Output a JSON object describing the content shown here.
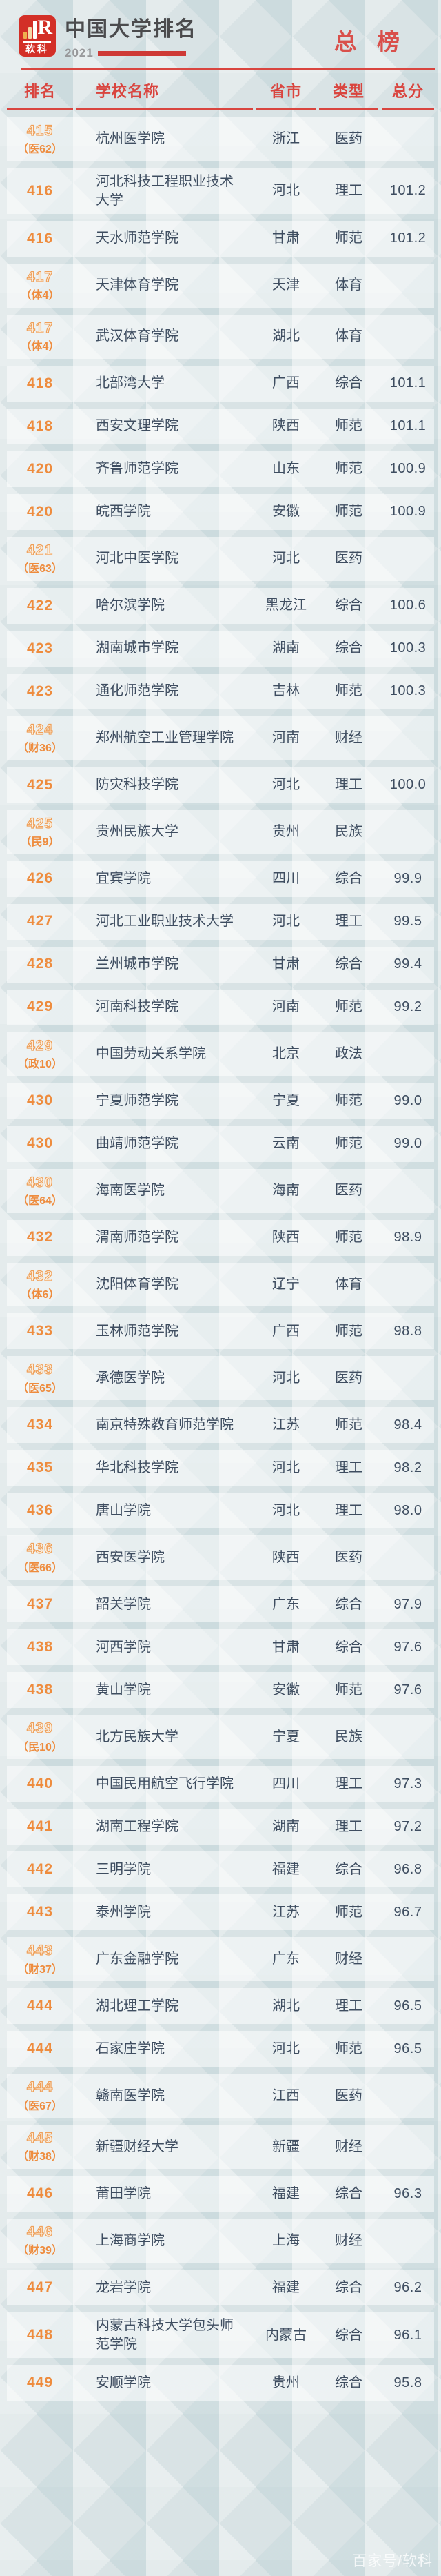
{
  "header": {
    "logo_label": "软科",
    "logo_glyph": "R",
    "title": "中国大学排名",
    "year": "2021",
    "badge": "总 榜"
  },
  "chart_data": {
    "type": "table",
    "title": "中国大学排名 2021 总榜",
    "columns": [
      "排名",
      "学校名称",
      "省市",
      "类型",
      "总分"
    ],
    "rows": [
      {
        "rank": "415",
        "sub": "（医62）",
        "name": "杭州医学院",
        "province": "浙江",
        "type": "医药",
        "score": ""
      },
      {
        "rank": "416",
        "sub": "",
        "name": "河北科技工程职业技术大学",
        "province": "河北",
        "type": "理工",
        "score": "101.2"
      },
      {
        "rank": "416",
        "sub": "",
        "name": "天水师范学院",
        "province": "甘肃",
        "type": "师范",
        "score": "101.2"
      },
      {
        "rank": "417",
        "sub": "（体4）",
        "name": "天津体育学院",
        "province": "天津",
        "type": "体育",
        "score": ""
      },
      {
        "rank": "417",
        "sub": "（体4）",
        "name": "武汉体育学院",
        "province": "湖北",
        "type": "体育",
        "score": ""
      },
      {
        "rank": "418",
        "sub": "",
        "name": "北部湾大学",
        "province": "广西",
        "type": "综合",
        "score": "101.1"
      },
      {
        "rank": "418",
        "sub": "",
        "name": "西安文理学院",
        "province": "陕西",
        "type": "师范",
        "score": "101.1"
      },
      {
        "rank": "420",
        "sub": "",
        "name": "齐鲁师范学院",
        "province": "山东",
        "type": "师范",
        "score": "100.9"
      },
      {
        "rank": "420",
        "sub": "",
        "name": "皖西学院",
        "province": "安徽",
        "type": "师范",
        "score": "100.9"
      },
      {
        "rank": "421",
        "sub": "（医63）",
        "name": "河北中医学院",
        "province": "河北",
        "type": "医药",
        "score": ""
      },
      {
        "rank": "422",
        "sub": "",
        "name": "哈尔滨学院",
        "province": "黑龙江",
        "type": "综合",
        "score": "100.6"
      },
      {
        "rank": "423",
        "sub": "",
        "name": "湖南城市学院",
        "province": "湖南",
        "type": "综合",
        "score": "100.3"
      },
      {
        "rank": "423",
        "sub": "",
        "name": "通化师范学院",
        "province": "吉林",
        "type": "师范",
        "score": "100.3"
      },
      {
        "rank": "424",
        "sub": "（财36）",
        "name": "郑州航空工业管理学院",
        "province": "河南",
        "type": "财经",
        "score": ""
      },
      {
        "rank": "425",
        "sub": "",
        "name": "防灾科技学院",
        "province": "河北",
        "type": "理工",
        "score": "100.0"
      },
      {
        "rank": "425",
        "sub": "（民9）",
        "name": "贵州民族大学",
        "province": "贵州",
        "type": "民族",
        "score": ""
      },
      {
        "rank": "426",
        "sub": "",
        "name": "宜宾学院",
        "province": "四川",
        "type": "综合",
        "score": "99.9"
      },
      {
        "rank": "427",
        "sub": "",
        "name": "河北工业职业技术大学",
        "province": "河北",
        "type": "理工",
        "score": "99.5"
      },
      {
        "rank": "428",
        "sub": "",
        "name": "兰州城市学院",
        "province": "甘肃",
        "type": "综合",
        "score": "99.4"
      },
      {
        "rank": "429",
        "sub": "",
        "name": "河南科技学院",
        "province": "河南",
        "type": "师范",
        "score": "99.2"
      },
      {
        "rank": "429",
        "sub": "（政10）",
        "name": "中国劳动关系学院",
        "province": "北京",
        "type": "政法",
        "score": ""
      },
      {
        "rank": "430",
        "sub": "",
        "name": "宁夏师范学院",
        "province": "宁夏",
        "type": "师范",
        "score": "99.0"
      },
      {
        "rank": "430",
        "sub": "",
        "name": "曲靖师范学院",
        "province": "云南",
        "type": "师范",
        "score": "99.0"
      },
      {
        "rank": "430",
        "sub": "（医64）",
        "name": "海南医学院",
        "province": "海南",
        "type": "医药",
        "score": ""
      },
      {
        "rank": "432",
        "sub": "",
        "name": "渭南师范学院",
        "province": "陕西",
        "type": "师范",
        "score": "98.9"
      },
      {
        "rank": "432",
        "sub": "（体6）",
        "name": "沈阳体育学院",
        "province": "辽宁",
        "type": "体育",
        "score": ""
      },
      {
        "rank": "433",
        "sub": "",
        "name": "玉林师范学院",
        "province": "广西",
        "type": "师范",
        "score": "98.8"
      },
      {
        "rank": "433",
        "sub": "（医65）",
        "name": "承德医学院",
        "province": "河北",
        "type": "医药",
        "score": ""
      },
      {
        "rank": "434",
        "sub": "",
        "name": "南京特殊教育师范学院",
        "province": "江苏",
        "type": "师范",
        "score": "98.4"
      },
      {
        "rank": "435",
        "sub": "",
        "name": "华北科技学院",
        "province": "河北",
        "type": "理工",
        "score": "98.2"
      },
      {
        "rank": "436",
        "sub": "",
        "name": "唐山学院",
        "province": "河北",
        "type": "理工",
        "score": "98.0"
      },
      {
        "rank": "436",
        "sub": "（医66）",
        "name": "西安医学院",
        "province": "陕西",
        "type": "医药",
        "score": ""
      },
      {
        "rank": "437",
        "sub": "",
        "name": "韶关学院",
        "province": "广东",
        "type": "综合",
        "score": "97.9"
      },
      {
        "rank": "438",
        "sub": "",
        "name": "河西学院",
        "province": "甘肃",
        "type": "综合",
        "score": "97.6"
      },
      {
        "rank": "438",
        "sub": "",
        "name": "黄山学院",
        "province": "安徽",
        "type": "师范",
        "score": "97.6"
      },
      {
        "rank": "439",
        "sub": "（民10）",
        "name": "北方民族大学",
        "province": "宁夏",
        "type": "民族",
        "score": ""
      },
      {
        "rank": "440",
        "sub": "",
        "name": "中国民用航空飞行学院",
        "province": "四川",
        "type": "理工",
        "score": "97.3"
      },
      {
        "rank": "441",
        "sub": "",
        "name": "湖南工程学院",
        "province": "湖南",
        "type": "理工",
        "score": "97.2"
      },
      {
        "rank": "442",
        "sub": "",
        "name": "三明学院",
        "province": "福建",
        "type": "综合",
        "score": "96.8"
      },
      {
        "rank": "443",
        "sub": "",
        "name": "泰州学院",
        "province": "江苏",
        "type": "师范",
        "score": "96.7"
      },
      {
        "rank": "443",
        "sub": "（财37）",
        "name": "广东金融学院",
        "province": "广东",
        "type": "财经",
        "score": ""
      },
      {
        "rank": "444",
        "sub": "",
        "name": "湖北理工学院",
        "province": "湖北",
        "type": "理工",
        "score": "96.5"
      },
      {
        "rank": "444",
        "sub": "",
        "name": "石家庄学院",
        "province": "河北",
        "type": "师范",
        "score": "96.5"
      },
      {
        "rank": "444",
        "sub": "（医67）",
        "name": "赣南医学院",
        "province": "江西",
        "type": "医药",
        "score": ""
      },
      {
        "rank": "445",
        "sub": "（财38）",
        "name": "新疆财经大学",
        "province": "新疆",
        "type": "财经",
        "score": ""
      },
      {
        "rank": "446",
        "sub": "",
        "name": "莆田学院",
        "province": "福建",
        "type": "综合",
        "score": "96.3"
      },
      {
        "rank": "446",
        "sub": "（财39）",
        "name": "上海商学院",
        "province": "上海",
        "type": "财经",
        "score": ""
      },
      {
        "rank": "447",
        "sub": "",
        "name": "龙岩学院",
        "province": "福建",
        "type": "综合",
        "score": "96.2"
      },
      {
        "rank": "448",
        "sub": "",
        "name": "内蒙古科技大学包头师范学院",
        "province": "内蒙古",
        "type": "综合",
        "score": "96.1"
      },
      {
        "rank": "449",
        "sub": "",
        "name": "安顺学院",
        "province": "贵州",
        "type": "综合",
        "score": "95.8"
      }
    ]
  },
  "watermark": "百家号/软科",
  "colors": {
    "accent_red": "#d9453f",
    "badge_red": "#d9504b",
    "rank_orange": "#ee8c3e",
    "text_dark": "#3e4d60",
    "logo_red": "#d32f27",
    "page_bg": "#d9e3e5"
  }
}
